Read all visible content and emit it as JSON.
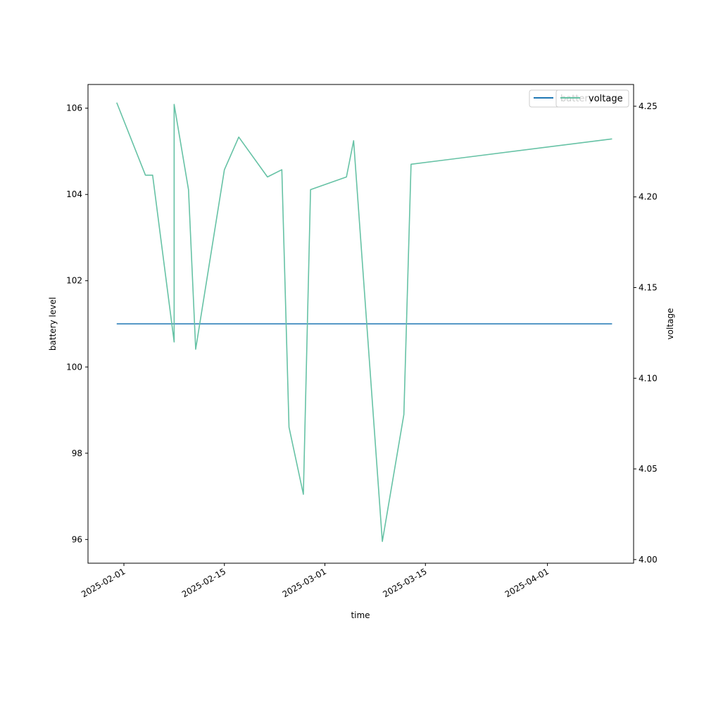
{
  "chart_data": {
    "type": "line",
    "xlabel": "time",
    "ylabel_left": "battery level",
    "ylabel_right": "voltage",
    "x_ticks": [
      "2025-02-01",
      "2025-02-15",
      "2025-03-01",
      "2025-03-15",
      "2025-04-01"
    ],
    "x_range": [
      "2025-01-27",
      "2025-04-13"
    ],
    "ylim_left": [
      95.45,
      106.55
    ],
    "yticks_left": [
      96,
      98,
      100,
      102,
      104,
      106
    ],
    "ylim_right": [
      3.998,
      4.262
    ],
    "yticks_right": [
      "4.00",
      "4.05",
      "4.10",
      "4.15",
      "4.20",
      "4.25"
    ],
    "grid": false,
    "legend": {
      "placement": "top-right",
      "entries": [
        {
          "label": "battery",
          "color": "#1f77b4"
        },
        {
          "label": "voltage",
          "color": "#66c2a5"
        }
      ]
    },
    "series": [
      {
        "name": "battery",
        "axis": "left",
        "color": "#1f77b4",
        "points": [
          [
            "2025-01-31",
            101.0
          ],
          [
            "2025-04-10",
            101.0
          ]
        ]
      },
      {
        "name": "voltage",
        "axis": "right",
        "color": "#66c2a5",
        "points": [
          [
            "2025-01-31",
            4.252
          ],
          [
            "2025-02-04",
            4.212
          ],
          [
            "2025-02-05",
            4.212
          ],
          [
            "2025-02-08",
            4.12
          ],
          [
            "2025-02-08",
            4.251
          ],
          [
            "2025-02-10",
            4.204
          ],
          [
            "2025-02-11",
            4.116
          ],
          [
            "2025-02-15",
            4.215
          ],
          [
            "2025-02-17",
            4.233
          ],
          [
            "2025-02-21",
            4.211
          ],
          [
            "2025-02-23",
            4.215
          ],
          [
            "2025-02-24",
            4.073
          ],
          [
            "2025-02-26",
            4.036
          ],
          [
            "2025-02-27",
            4.204
          ],
          [
            "2025-03-04",
            4.211
          ],
          [
            "2025-03-05",
            4.231
          ],
          [
            "2025-03-09",
            4.01
          ],
          [
            "2025-03-12",
            4.08
          ],
          [
            "2025-03-13",
            4.218
          ],
          [
            "2025-04-10",
            4.232
          ]
        ]
      }
    ]
  }
}
